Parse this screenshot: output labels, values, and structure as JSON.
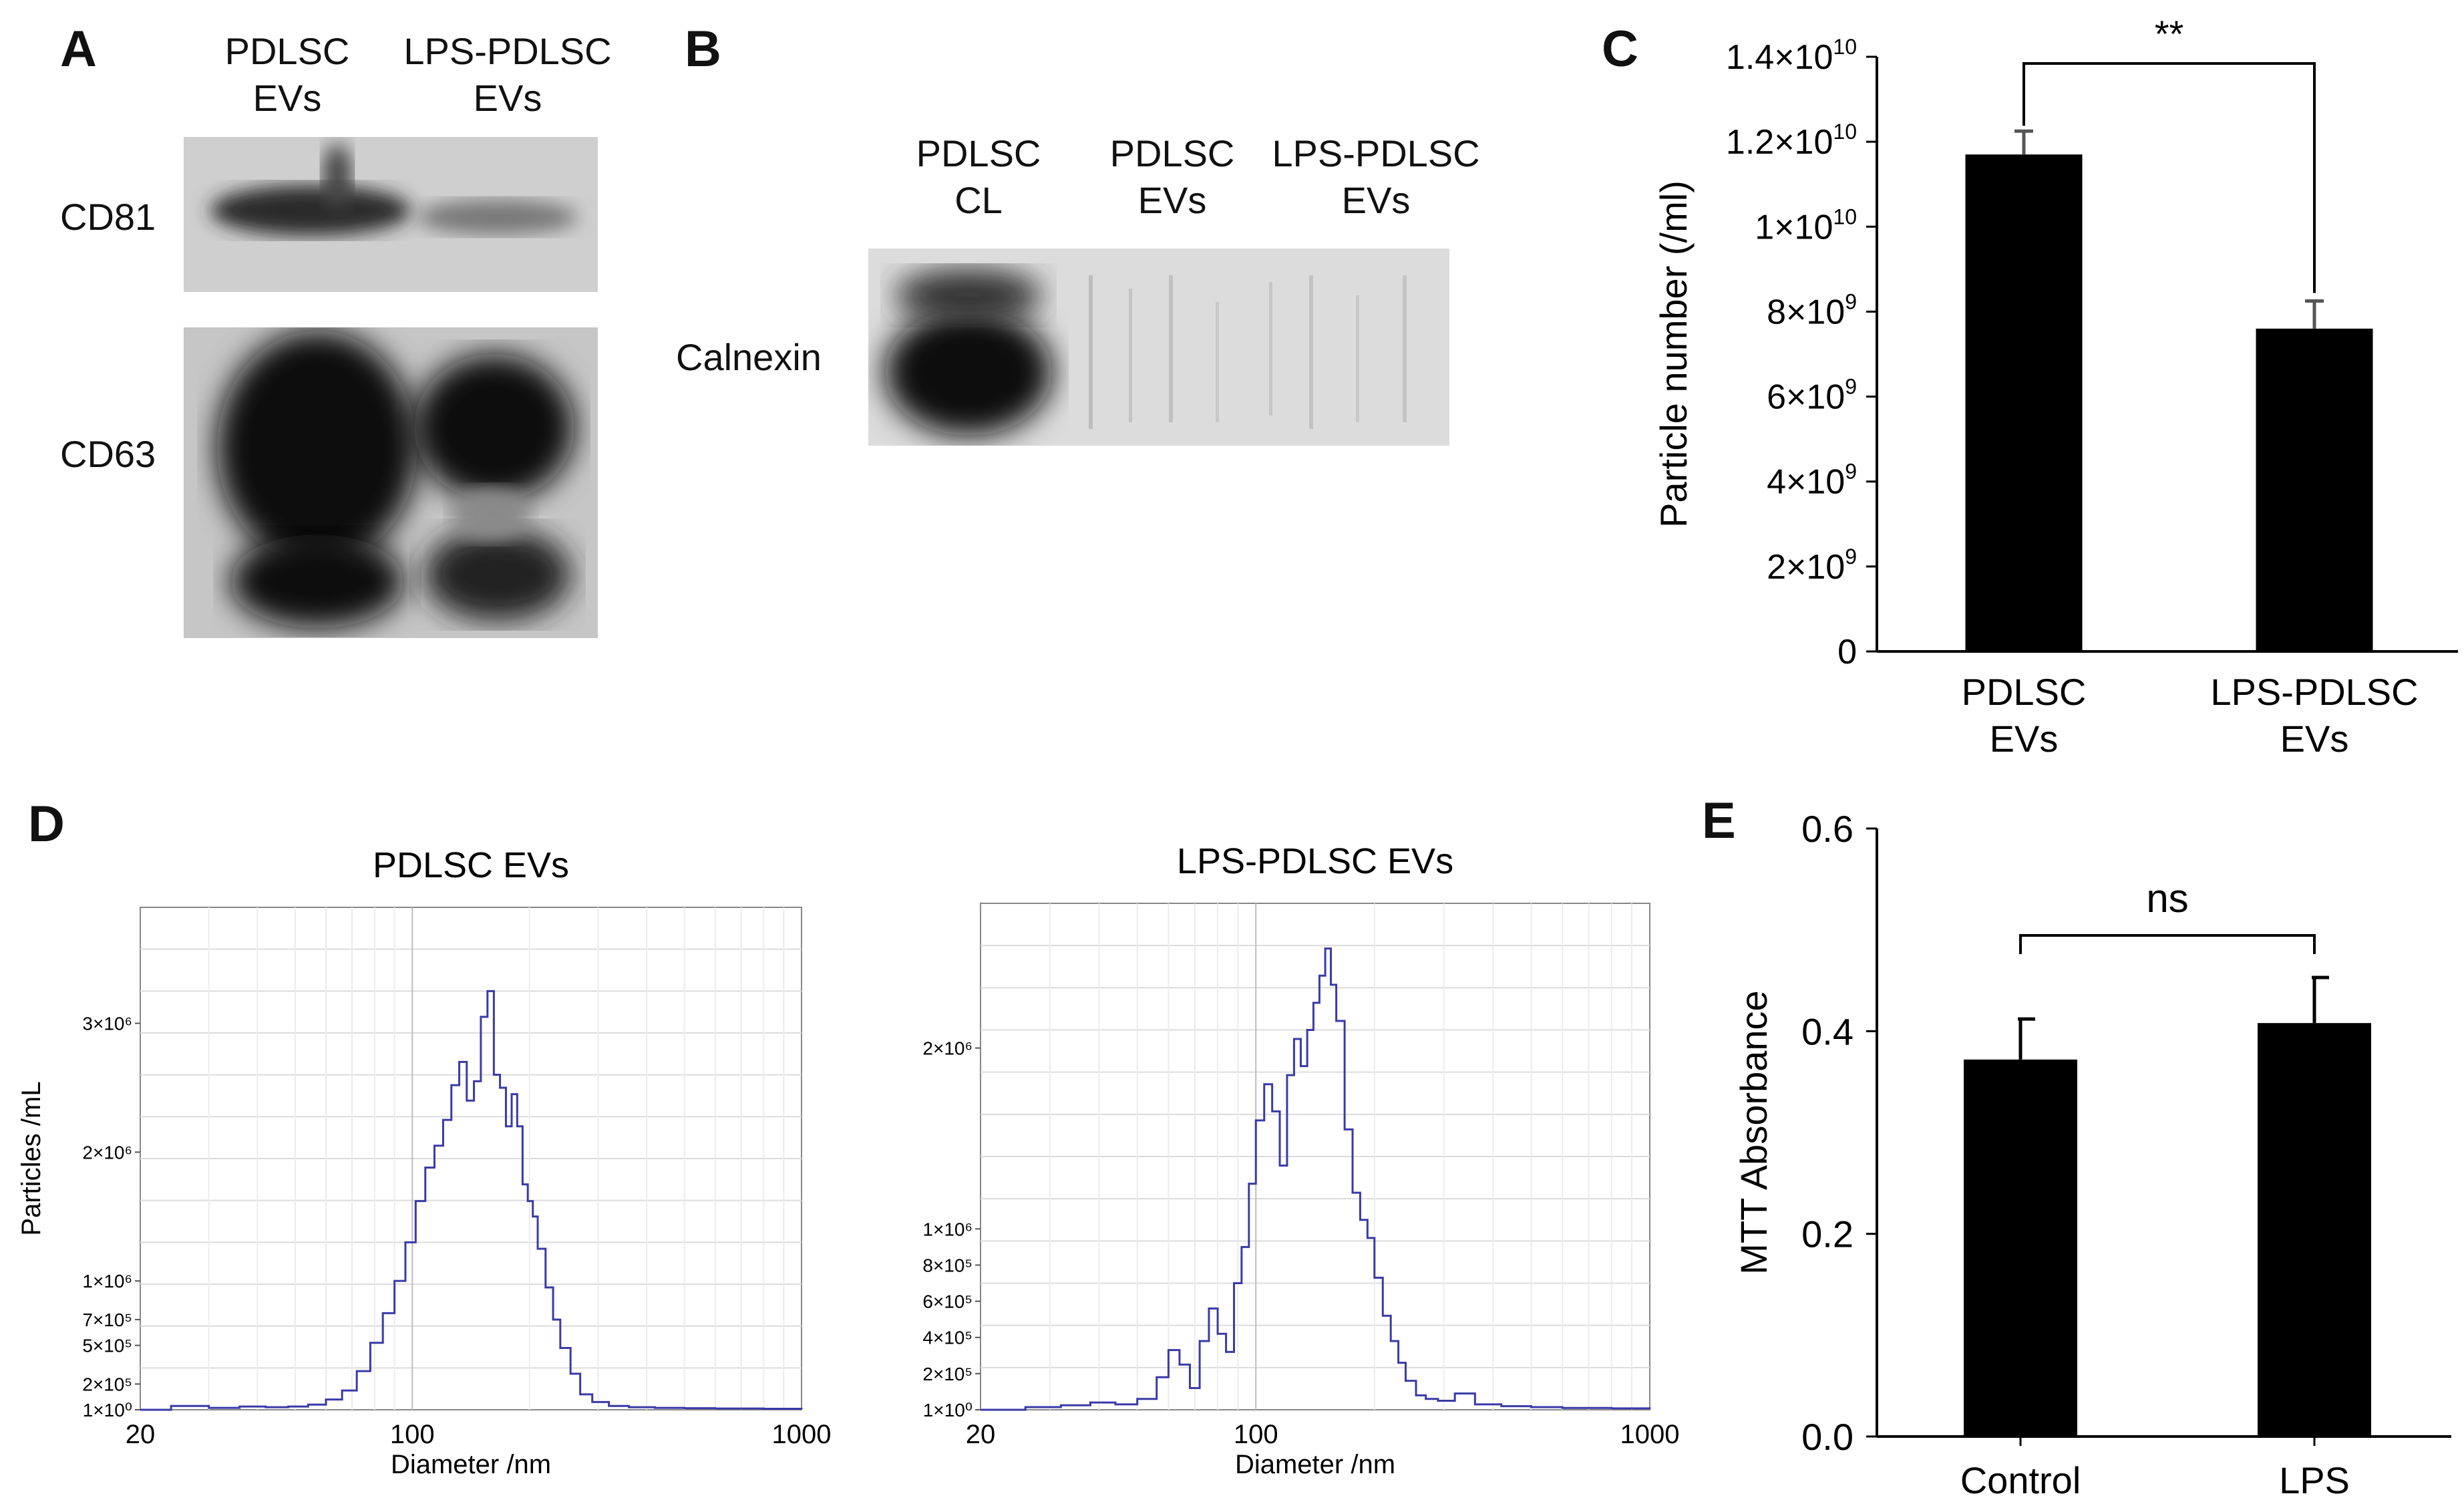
{
  "panel_labels": {
    "a": "A",
    "b": "B",
    "c": "C",
    "d": "D",
    "e": "E"
  },
  "panel_a": {
    "col1_line1": "PDLSC",
    "col1_line2": "EVs",
    "col2_line1": "LPS-PDLSC",
    "col2_line2": "EVs",
    "row1": "CD81",
    "row2": "CD63"
  },
  "panel_b": {
    "col1_line1": "PDLSC",
    "col1_line2": "CL",
    "col2_line1": "PDLSC",
    "col2_line2": "EVs",
    "col3_line1": "LPS-PDLSC",
    "col3_line2": "EVs",
    "row1": "Calnexin"
  },
  "chart_data": [
    {
      "id": "C",
      "type": "bar",
      "categories": [
        "PDLSC EVs",
        "LPS-PDLSC EVs"
      ],
      "category_lines": [
        [
          "PDLSC",
          "EVs"
        ],
        [
          "LPS-PDLSC",
          "EVs"
        ]
      ],
      "values": [
        11700000000,
        7600000000
      ],
      "errors": [
        550000000,
        650000000
      ],
      "ylabel": "Particle number (/ml)",
      "ylim": [
        0,
        14000000000
      ],
      "yticks": [
        0,
        2000000000,
        4000000000,
        6000000000,
        8000000000,
        10000000000,
        12000000000,
        14000000000
      ],
      "ytick_labels": [
        {
          "base": "0",
          "exp": ""
        },
        {
          "base": "2×10",
          "exp": "9"
        },
        {
          "base": "4×10",
          "exp": "9"
        },
        {
          "base": "6×10",
          "exp": "9"
        },
        {
          "base": "8×10",
          "exp": "9"
        },
        {
          "base": "1×10",
          "exp": "10"
        },
        {
          "base": "1.2×10",
          "exp": "10"
        },
        {
          "base": "1.4×10",
          "exp": "10"
        }
      ],
      "significance": "**",
      "bar_color": "#000000"
    },
    {
      "id": "D1",
      "type": "line",
      "title": "PDLSC EVs",
      "xlabel": "Diameter /nm",
      "ylabel": "Particles /mL",
      "xscale": "log",
      "xlim": [
        20,
        1000
      ],
      "xticks": [
        20,
        100,
        1000
      ],
      "ytick_labels": [
        "1×10⁰",
        "2×10⁵",
        "5×10⁵",
        "7×10⁵",
        "1×10⁶",
        "2×10⁶",
        "3×10⁶"
      ],
      "ytick_values": [
        1,
        200000,
        500000,
        700000,
        1000000,
        2000000,
        3000000
      ],
      "line_color": "#3a3aa8",
      "x": [
        20,
        24,
        30,
        36,
        42,
        48,
        54,
        60,
        66,
        72,
        78,
        84,
        90,
        96,
        102,
        108,
        114,
        120,
        126,
        132,
        138,
        144,
        150,
        156,
        162,
        168,
        174,
        180,
        186,
        192,
        198,
        204,
        210,
        220,
        230,
        240,
        255,
        270,
        290,
        320,
        360,
        420,
        500,
        600,
        800,
        1000
      ],
      "y": [
        1,
        30000,
        15000,
        25000,
        20000,
        25000,
        40000,
        80000,
        150000,
        300000,
        520000,
        750000,
        1000000,
        1300000,
        1620000,
        1880000,
        2050000,
        2250000,
        2520000,
        2700000,
        2400000,
        2550000,
        3050000,
        3250000,
        2600000,
        2500000,
        2200000,
        2450000,
        2200000,
        1750000,
        1620000,
        1500000,
        1250000,
        950000,
        700000,
        480000,
        280000,
        120000,
        60000,
        30000,
        20000,
        15000,
        12000,
        10000,
        8000,
        6000
      ]
    },
    {
      "id": "D2",
      "type": "line",
      "title": "LPS-PDLSC EVs",
      "xlabel": "Diameter /nm",
      "ylabel": "",
      "xscale": "log",
      "xlim": [
        20,
        1000
      ],
      "xticks": [
        20,
        100,
        1000
      ],
      "ytick_labels": [
        "1×10⁰",
        "2×10⁵",
        "4×10⁵",
        "6×10⁵",
        "8×10⁵",
        "1×10⁶",
        "2×10⁶"
      ],
      "ytick_values": [
        1,
        200000,
        400000,
        600000,
        800000,
        1000000,
        2000000
      ],
      "line_color": "#3a3aa8",
      "x": [
        20,
        26,
        32,
        38,
        44,
        50,
        56,
        60,
        64,
        68,
        72,
        76,
        80,
        84,
        88,
        92,
        96,
        100,
        105,
        110,
        115,
        120,
        125,
        130,
        135,
        140,
        145,
        150,
        155,
        160,
        168,
        176,
        184,
        192,
        200,
        210,
        220,
        230,
        240,
        255,
        270,
        290,
        320,
        360,
        420,
        500,
        600,
        800,
        1000
      ],
      "y": [
        1,
        15000,
        25000,
        40000,
        30000,
        60000,
        180000,
        330000,
        250000,
        120000,
        380000,
        560000,
        420000,
        320000,
        700000,
        900000,
        1250000,
        1600000,
        1800000,
        1650000,
        1350000,
        1850000,
        2050000,
        1900000,
        2100000,
        2250000,
        2400000,
        2550000,
        2350000,
        2150000,
        1550000,
        1200000,
        1050000,
        950000,
        730000,
        520000,
        380000,
        260000,
        160000,
        80000,
        60000,
        50000,
        90000,
        30000,
        20000,
        15000,
        10000,
        8000,
        5000
      ]
    },
    {
      "id": "E",
      "type": "bar",
      "categories": [
        "Control",
        "LPS"
      ],
      "values": [
        0.372,
        0.408
      ],
      "errors": [
        0.04,
        0.045
      ],
      "ylabel": "MTT Absorbance",
      "ylim": [
        0,
        0.6
      ],
      "yticks": [
        0,
        0.2,
        0.4,
        0.6
      ],
      "ytick_labels": [
        "0.0",
        "0.2",
        "0.4",
        "0.6"
      ],
      "significance": "ns",
      "bar_color": "#000000"
    }
  ]
}
